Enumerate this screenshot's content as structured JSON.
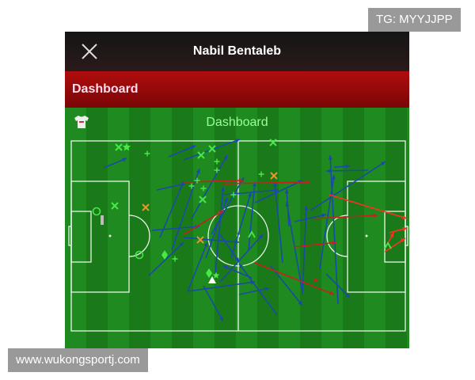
{
  "header": {
    "title": "Nabil Bentaleb",
    "close_icon": "close-icon"
  },
  "section": {
    "label": "Dashboard"
  },
  "field": {
    "title": "Dashboard",
    "team_icon": "shirt-icon"
  },
  "colors": {
    "pass_success": "#1a4aa8",
    "pass_failed": "#c8201a",
    "shot": "#ff3020",
    "marker_green": "#49e84a",
    "marker_orange": "#e8962a",
    "pitch": "#1a7a1a",
    "header_red": "#b00d0d"
  },
  "watermarks": {
    "top": "TG: MYYJJPP",
    "bottom": "www.wukongsportj.com"
  }
}
